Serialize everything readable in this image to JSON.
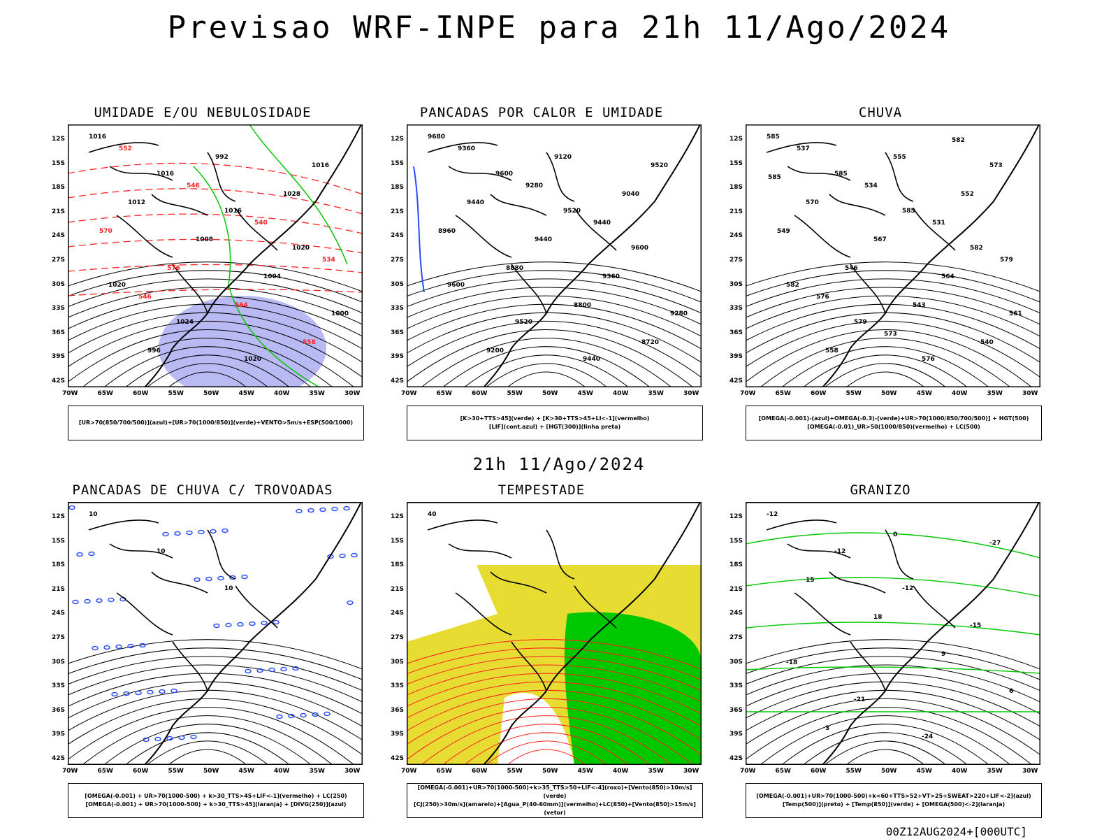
{
  "main_title": "Previsao WRF-INPE  para 21h 11/Ago/2024",
  "mid_title": "21h 11/Ago/2024",
  "footer": "00Z12AUG2024+[000UTC]",
  "lat_labels": [
    "12S",
    "15S",
    "18S",
    "21S",
    "24S",
    "27S",
    "30S",
    "33S",
    "36S",
    "39S",
    "42S"
  ],
  "lon_labels": [
    "70W",
    "65W",
    "60W",
    "55W",
    "50W",
    "45W",
    "40W",
    "35W",
    "30W"
  ],
  "panels": [
    {
      "title": "UMIDADE E/OU NEBULOSIDADE",
      "legend": [
        "[UR>70(850/700/500)](azul)+[UR>70(1000/850)](verde)+VENTO>5m/s+ESP(500/1000)"
      ],
      "labels": [
        "1016",
        "1016",
        "1016",
        "1020",
        "1020",
        "1024",
        "1020",
        "1016",
        "1012",
        "1008",
        "1004",
        "1000",
        "996",
        "992",
        "1028",
        "570",
        "576",
        "564",
        "558",
        "552",
        "546",
        "540",
        "534",
        "546"
      ]
    },
    {
      "title": "PANCADAS POR CALOR E UMIDADE",
      "legend": [
        "[K>30+TTS>45](verde) + [K>30+TTS>45+LI<-1](vermelho)",
        "[LIF](cont.azul) + [HGT(300)](linha preta)"
      ],
      "labels": [
        "9680",
        "9600",
        "9520",
        "9600",
        "9600",
        "9520",
        "9440",
        "9520",
        "9440",
        "9440",
        "9360",
        "9280",
        "9200",
        "9120",
        "9040",
        "8960",
        "8880",
        "8800",
        "8720",
        "9360",
        "9280",
        "9440"
      ]
    },
    {
      "title": "CHUVA",
      "legend": [
        "[OMEGA(-0.001)-(azul)+OMEGA(-0.3)-(verde)+UR>70(1000/850/700/500)] + HGT(500)",
        "[OMEGA(-0.01)_UR>50(1000/850)(vermelho) + LC(500)"
      ],
      "labels": [
        "585",
        "585",
        "585",
        "582",
        "582",
        "579",
        "576",
        "573",
        "570",
        "567",
        "564",
        "561",
        "558",
        "555",
        "552",
        "549",
        "546",
        "543",
        "540",
        "537",
        "534",
        "531",
        "579",
        "576",
        "573",
        "582",
        "585"
      ]
    },
    {
      "title": "PANCADAS DE CHUVA C/ TROVOADAS",
      "legend": [
        "[OMEGA(-0.001) + UR>70(1000-500) + k>30_TTS>45+LIF<-1](vermelho) + LC(250)",
        "[OMEGA(-0.001) + UR>70(1000-500) + k>30_TTS>45](laranja) + [DIVG(250)](azul)"
      ],
      "labels": [
        "10",
        "10",
        "10"
      ]
    },
    {
      "title": "TEMPESTADE",
      "legend": [
        "[OMEGA(-0.001)+UR>70(1000-500)+k>35_TTS>50+LIF<-4](roxo)+[Vento(850)>10m/s](verde)",
        "[CJ(250)>30m/s](amarelo)+[Agua_P(40-60mm)](vermelho)+LC(850)+[Vento(850)>15m/s](vetor)"
      ],
      "labels": [
        "40"
      ]
    },
    {
      "title": "GRANIZO",
      "legend": [
        "[OMEGA(-0.001)+UR>70(1000-500)+k<60+TTS>52+VT>25+SWEAT>220+LIF<-2](azul)",
        "[Temp(500)](preto) + [Temp(850)](verde) + [OMEGA(500)<-2](laranja)"
      ],
      "labels": [
        "-12",
        "-12",
        "-12",
        "-15",
        "-18",
        "-21",
        "-24",
        "-27",
        "15",
        "18",
        "9",
        "6",
        "3",
        "0"
      ]
    }
  ],
  "colors": {
    "blue": "#2b4bff",
    "green": "#00c800",
    "red": "#ff2020",
    "yellow": "#e6dc32",
    "lavender": "#a8a8f0",
    "darkteal": "#1e5a5a"
  }
}
